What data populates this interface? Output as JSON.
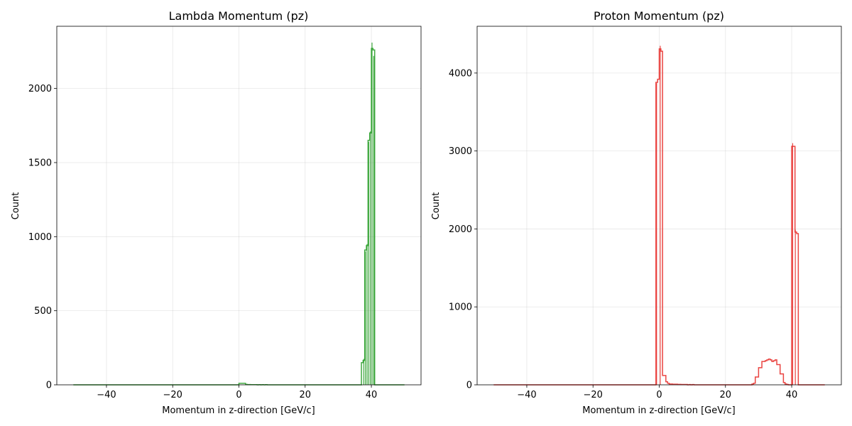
{
  "chart_data": [
    {
      "type": "histogram",
      "title": "Lambda Momentum (pz)",
      "xlabel": "Momentum in z-direction [GeV/c]",
      "ylabel": "Count",
      "xlim": [
        -55,
        55
      ],
      "ylim": [
        0,
        2420
      ],
      "xticks": [
        -40,
        -20,
        0,
        20,
        40
      ],
      "xtick_labels": [
        "−40",
        "−20",
        "0",
        "20",
        "40"
      ],
      "yticks": [
        0,
        500,
        1000,
        1500,
        2000
      ],
      "ytick_labels": [
        "0",
        "500",
        "1000",
        "1500",
        "2000"
      ],
      "color": "#2ca02c",
      "grid": true,
      "bins": {
        "edges_start": -50,
        "edges_end": 50,
        "bin_width": 0.5,
        "counts_sparse": [
          [
            0,
            10
          ],
          [
            0.5,
            10
          ],
          [
            1,
            10
          ],
          [
            1.5,
            10
          ],
          [
            2,
            3
          ],
          [
            2.5,
            2
          ],
          [
            3,
            2
          ],
          [
            3.5,
            1
          ],
          [
            4,
            1
          ],
          [
            4.5,
            1
          ],
          [
            5,
            1
          ],
          [
            6,
            1
          ],
          [
            7,
            1
          ],
          [
            8,
            1
          ],
          [
            37,
            150
          ],
          [
            37.5,
            165
          ],
          [
            38,
            910
          ],
          [
            38.5,
            940
          ],
          [
            39,
            1650
          ],
          [
            39.5,
            1700
          ],
          [
            40,
            2270
          ],
          [
            40.5,
            2260
          ]
        ],
        "spikes": [
          [
            37.7,
            175
          ],
          [
            38.2,
            900
          ],
          [
            38.7,
            950
          ],
          [
            39.2,
            1640
          ],
          [
            39.7,
            1710
          ],
          [
            40.2,
            2310
          ],
          [
            40.7,
            2220
          ]
        ]
      }
    },
    {
      "type": "histogram",
      "title": "Proton Momentum (pz)",
      "xlabel": "Momentum in z-direction [GeV/c]",
      "ylabel": "Count",
      "xlim": [
        -55,
        55
      ],
      "ylim": [
        0,
        4600
      ],
      "xticks": [
        -40,
        -20,
        0,
        20,
        40
      ],
      "xtick_labels": [
        "−40",
        "−20",
        "0",
        "20",
        "40"
      ],
      "yticks": [
        0,
        1000,
        2000,
        3000,
        4000
      ],
      "ytick_labels": [
        "0",
        "1000",
        "2000",
        "3000",
        "4000"
      ],
      "color": "#e8302c",
      "grid": true,
      "bins": {
        "edges_start": -50,
        "edges_end": 50,
        "bin_width": 0.5,
        "counts_sparse": [
          [
            -1,
            3880
          ],
          [
            -0.5,
            3920
          ],
          [
            0,
            4310
          ],
          [
            0.5,
            4280
          ],
          [
            1,
            120
          ],
          [
            1.5,
            120
          ],
          [
            2,
            40
          ],
          [
            2.5,
            20
          ],
          [
            3,
            10
          ],
          [
            3.5,
            10
          ],
          [
            4,
            8
          ],
          [
            4.5,
            8
          ],
          [
            5,
            8
          ],
          [
            5.5,
            6
          ],
          [
            6,
            6
          ],
          [
            6.5,
            5
          ],
          [
            7,
            5
          ],
          [
            7.5,
            5
          ],
          [
            8,
            5
          ],
          [
            9,
            3
          ],
          [
            10,
            3
          ],
          [
            28,
            10
          ],
          [
            28.5,
            20
          ],
          [
            29,
            100
          ],
          [
            29.5,
            100
          ],
          [
            30,
            220
          ],
          [
            30.5,
            220
          ],
          [
            31,
            300
          ],
          [
            31.5,
            300
          ],
          [
            32,
            310
          ],
          [
            32.5,
            320
          ],
          [
            33,
            330
          ],
          [
            33.5,
            320
          ],
          [
            34,
            300
          ],
          [
            34.5,
            310
          ],
          [
            35,
            320
          ],
          [
            35.5,
            260
          ],
          [
            36,
            260
          ],
          [
            36.5,
            140
          ],
          [
            37,
            140
          ],
          [
            37.5,
            30
          ],
          [
            38,
            10
          ],
          [
            38.5,
            5
          ],
          [
            40,
            3060
          ],
          [
            40.5,
            3060
          ],
          [
            41,
            1960
          ],
          [
            41.5,
            1940
          ]
        ],
        "spikes": [
          [
            -0.8,
            3870
          ],
          [
            0.3,
            4350
          ],
          [
            40.3,
            3100
          ],
          [
            41.1,
            1990
          ]
        ]
      }
    }
  ]
}
